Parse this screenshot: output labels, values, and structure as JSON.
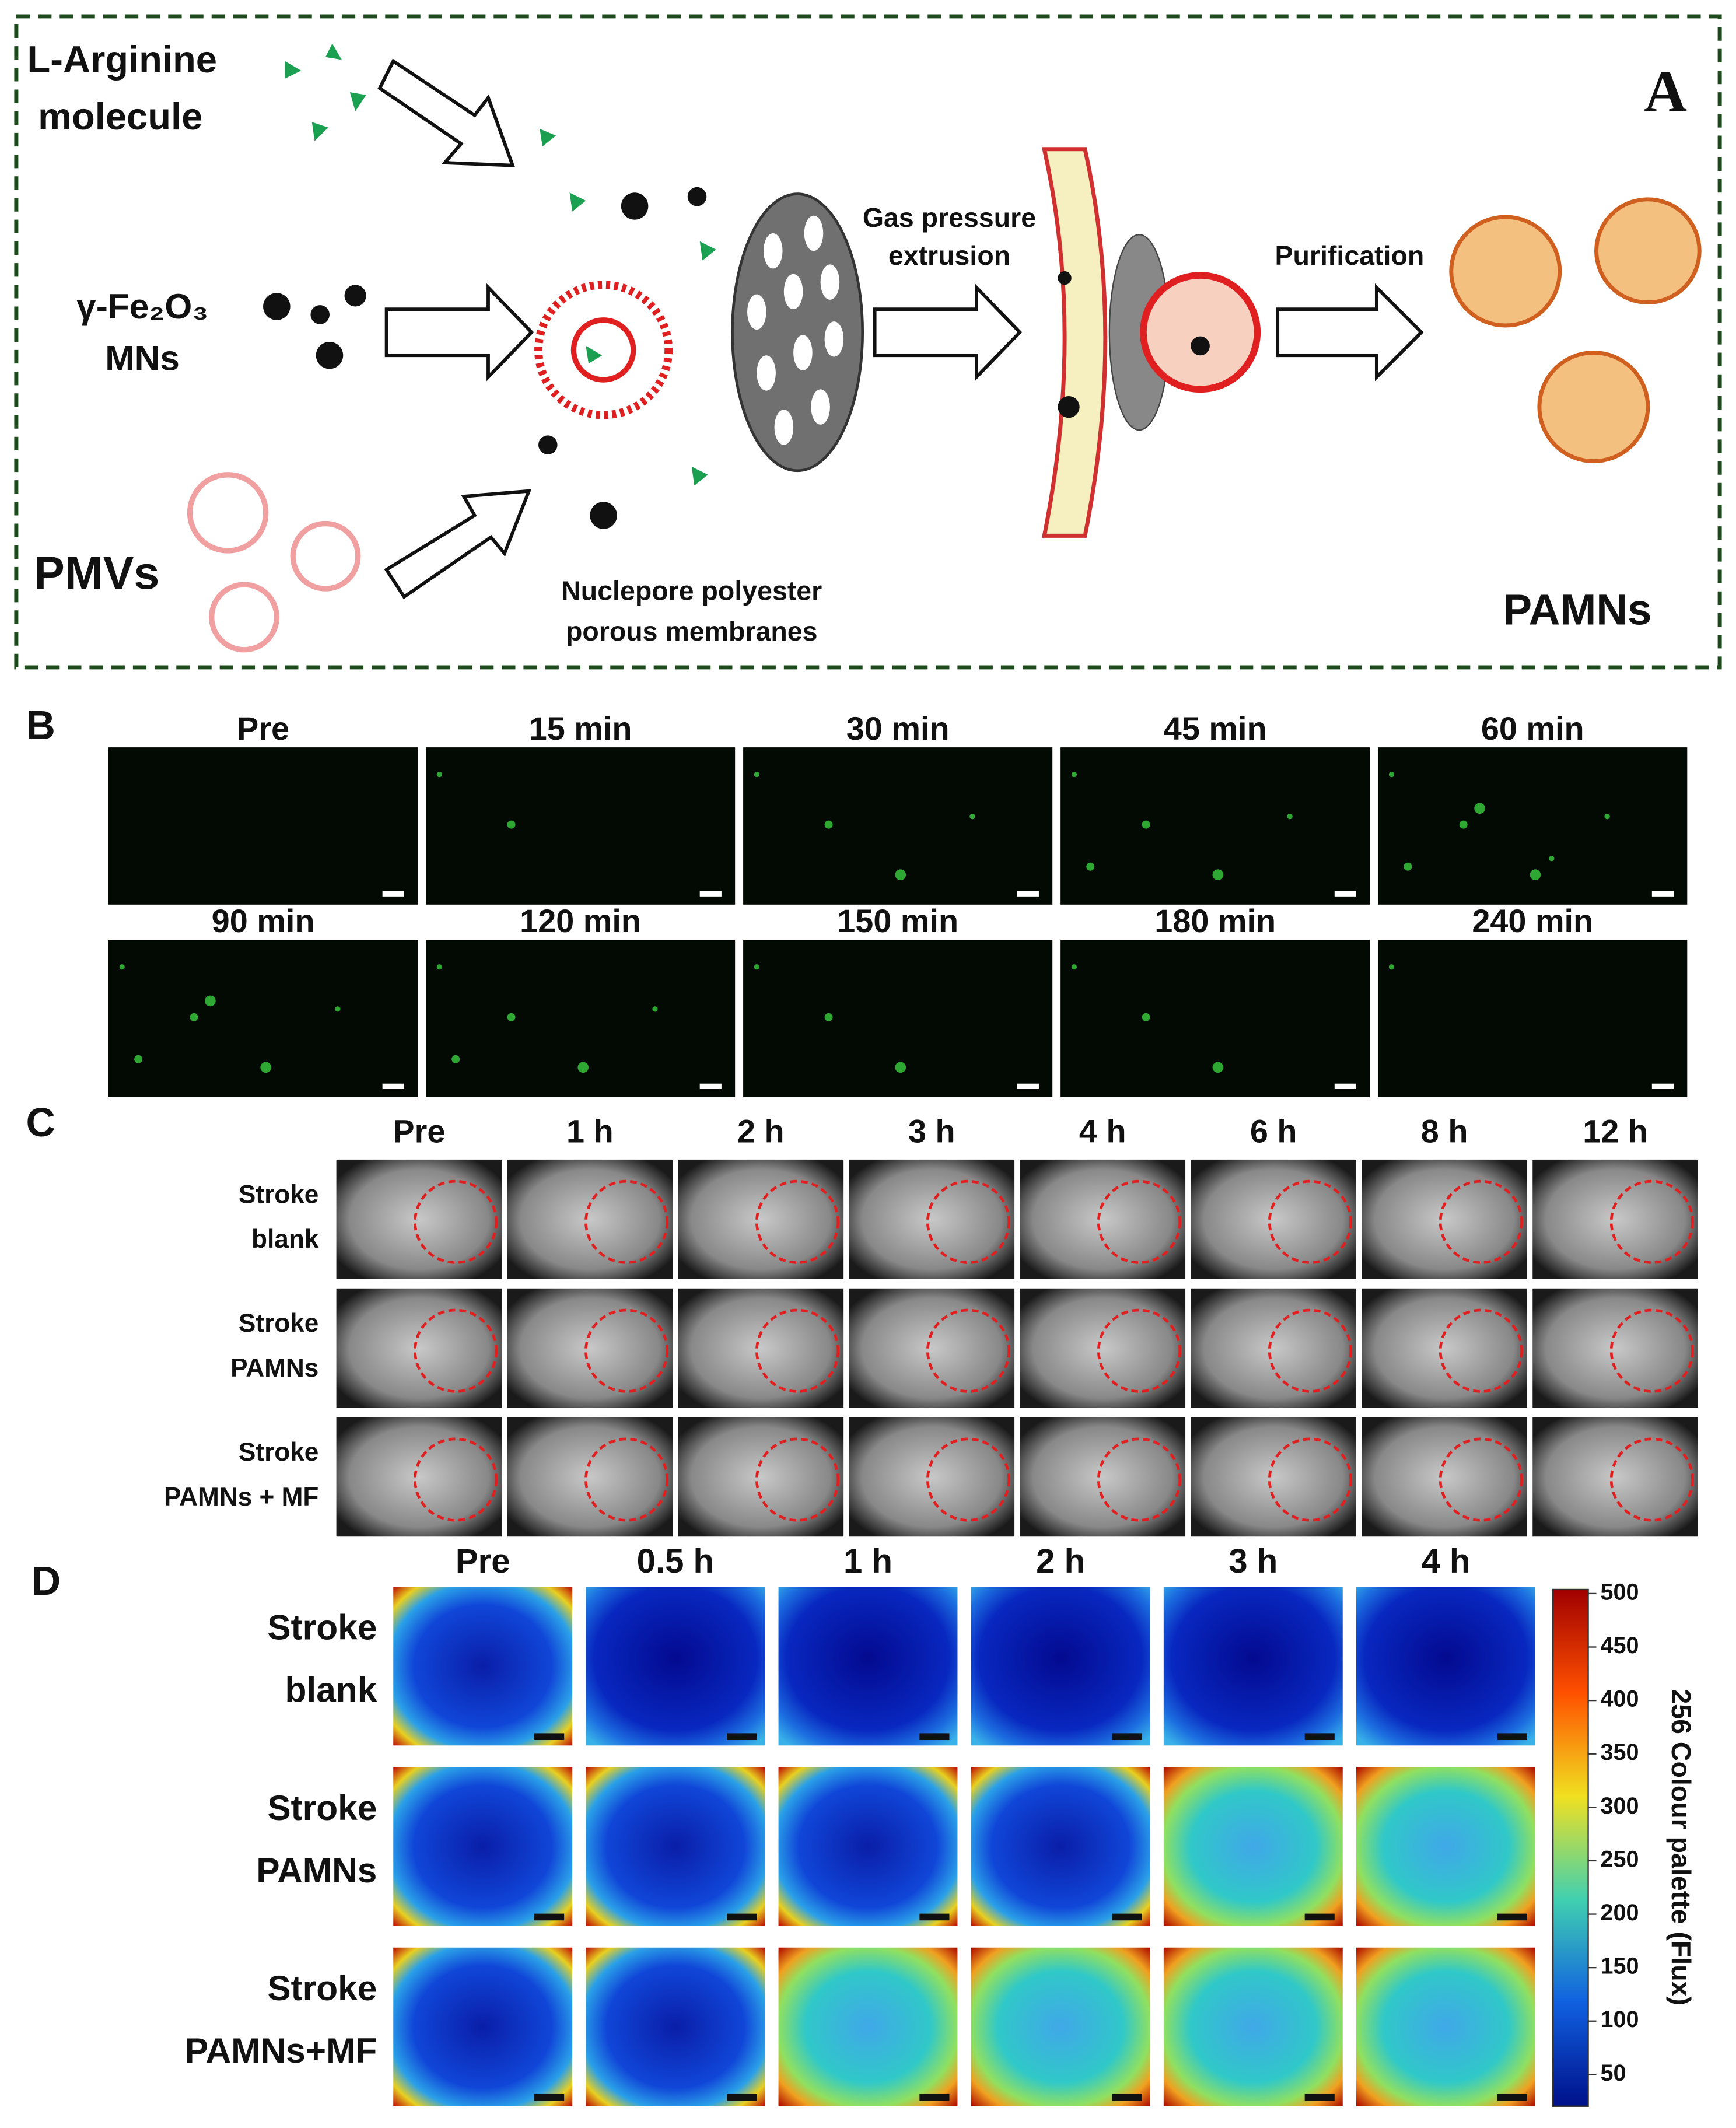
{
  "panel_a": {
    "label": "A",
    "arginine": [
      "L-Arginine",
      "molecule"
    ],
    "fe2o3": [
      "γ-Fe₂O₃",
      "MNs"
    ],
    "pmvs": "PMVs",
    "membrane": [
      "Nuclepore polyester",
      "porous membranes"
    ],
    "extrusion": [
      "Gas pressure",
      "extrusion"
    ],
    "purification": "Purification",
    "product": "PAMNs"
  },
  "panel_b": {
    "label": "B",
    "times": [
      "Pre",
      "15 min",
      "30 min",
      "45 min",
      "60 min",
      "90 min",
      "120 min",
      "150 min",
      "180 min",
      "240 min"
    ]
  },
  "panel_c": {
    "label": "C",
    "columns": [
      "Pre",
      "1 h",
      "2 h",
      "3 h",
      "4 h",
      "6 h",
      "8 h",
      "12 h"
    ],
    "rows": [
      [
        "Stroke",
        "blank"
      ],
      [
        "Stroke",
        "PAMNs"
      ],
      [
        "Stroke",
        "PAMNs + MF"
      ]
    ]
  },
  "panel_d": {
    "label": "D",
    "columns": [
      "Pre",
      "0.5 h",
      "1 h",
      "2 h",
      "3 h",
      "4 h"
    ],
    "rows": [
      [
        "Stroke",
        "blank"
      ],
      [
        "Stroke",
        "PAMNs"
      ],
      [
        "Stroke",
        "PAMNs+MF"
      ]
    ],
    "colorbar_title": "256 Colour palette (Flux)",
    "colorbar_ticks": [
      "500",
      "450",
      "400",
      "350",
      "300",
      "250",
      "200",
      "150",
      "100",
      "50"
    ]
  }
}
